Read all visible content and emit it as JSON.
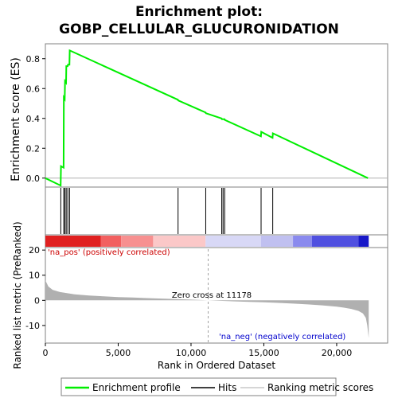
{
  "chart_data": {
    "type": "line",
    "title_line1": "Enrichment plot:",
    "title_line2": "GOBP_CELLULAR_GLUCURONIDATION",
    "top_panel": {
      "ylabel": "Enrichment score (ES)",
      "yticks": [
        0.0,
        0.2,
        0.4,
        0.6,
        0.8
      ],
      "ytick_labels": [
        "0.0",
        "0.2",
        "0.4",
        "0.6",
        "0.8"
      ],
      "ylim": [
        -0.06,
        0.9
      ],
      "es_profile": {
        "name": "Enrichment profile",
        "color": "#00ee00",
        "x": [
          0,
          1050,
          1070,
          1250,
          1270,
          1330,
          1350,
          1420,
          1440,
          1530,
          1550,
          1650,
          1670,
          9100,
          9120,
          11000,
          11020,
          12100,
          12120,
          12300,
          12320,
          14800,
          14820,
          15600,
          15620,
          22150
        ],
        "y": [
          0.0,
          -0.05,
          0.08,
          0.07,
          0.54,
          0.53,
          0.65,
          0.64,
          0.75,
          0.75,
          0.76,
          0.76,
          0.855,
          0.525,
          0.52,
          0.44,
          0.435,
          0.4,
          0.395,
          0.395,
          0.39,
          0.28,
          0.31,
          0.27,
          0.3,
          0.0
        ]
      }
    },
    "hits": {
      "name": "Hits",
      "positions": [
        1060,
        1260,
        1340,
        1430,
        1540,
        1660,
        9110,
        11010,
        12110,
        12200,
        12310,
        14810,
        15610
      ]
    },
    "rank_bar": {
      "segments": [
        {
          "start": 0,
          "end": 3800,
          "color": "#e02020"
        },
        {
          "start": 3800,
          "end": 5200,
          "color": "#f26060"
        },
        {
          "start": 5200,
          "end": 7400,
          "color": "#f79090"
        },
        {
          "start": 7400,
          "end": 11000,
          "color": "#fbc8c8"
        },
        {
          "start": 11000,
          "end": 14800,
          "color": "#d8d8f6"
        },
        {
          "start": 14800,
          "end": 17000,
          "color": "#c0c0f0"
        },
        {
          "start": 17000,
          "end": 18300,
          "color": "#8a8aee"
        },
        {
          "start": 18300,
          "end": 21500,
          "color": "#5050e0"
        },
        {
          "start": 21500,
          "end": 22200,
          "color": "#1818c8"
        }
      ]
    },
    "bottom_panel": {
      "ylabel": "Ranked list metric (PreRanked)",
      "yticks": [
        -10,
        0,
        10,
        20
      ],
      "ytick_labels": [
        "-10",
        "0",
        "10",
        "20"
      ],
      "ylim": [
        -17,
        21
      ],
      "metric_color": "#b0b0b0",
      "metric_x": [
        0,
        200,
        500,
        1000,
        2000,
        3000,
        4000,
        5000,
        6000,
        7000,
        8000,
        9000,
        10000,
        11178,
        12000,
        13000,
        14000,
        15000,
        16000,
        17000,
        18000,
        19000,
        20000,
        20500,
        21000,
        21500,
        21800,
        22000,
        22100,
        22200
      ],
      "metric_y": [
        8,
        5.5,
        4.2,
        3.3,
        2.4,
        1.9,
        1.6,
        1.3,
        1.1,
        0.9,
        0.7,
        0.5,
        0.3,
        0.0,
        -0.2,
        -0.4,
        -0.6,
        -0.8,
        -1.0,
        -1.3,
        -1.6,
        -2.0,
        -2.5,
        -2.9,
        -3.4,
        -4.2,
        -5.2,
        -7.0,
        -10.0,
        -15.0
      ],
      "zero_cross_label": "Zero cross at 11178",
      "zero_cross_rank": 11178,
      "pos_label": "'na_pos' (positively correlated)",
      "neg_label": "'na_neg' (negatively correlated)",
      "pos_color": "#cc0000",
      "neg_color": "#0000cc"
    },
    "xlabel": "Rank in Ordered Dataset",
    "xlim": [
      0,
      23500
    ],
    "xticks": [
      0,
      5000,
      10000,
      15000,
      20000
    ],
    "xtick_labels": [
      "0",
      "5,000",
      "10,000",
      "15,000",
      "20,000"
    ],
    "legend": {
      "placement": "bottom",
      "items": [
        {
          "label": "Enrichment profile",
          "color": "#00ee00"
        },
        {
          "label": "Hits",
          "color": "#000000"
        },
        {
          "label": "Ranking metric scores",
          "color": "#c8c8c8"
        }
      ]
    }
  }
}
